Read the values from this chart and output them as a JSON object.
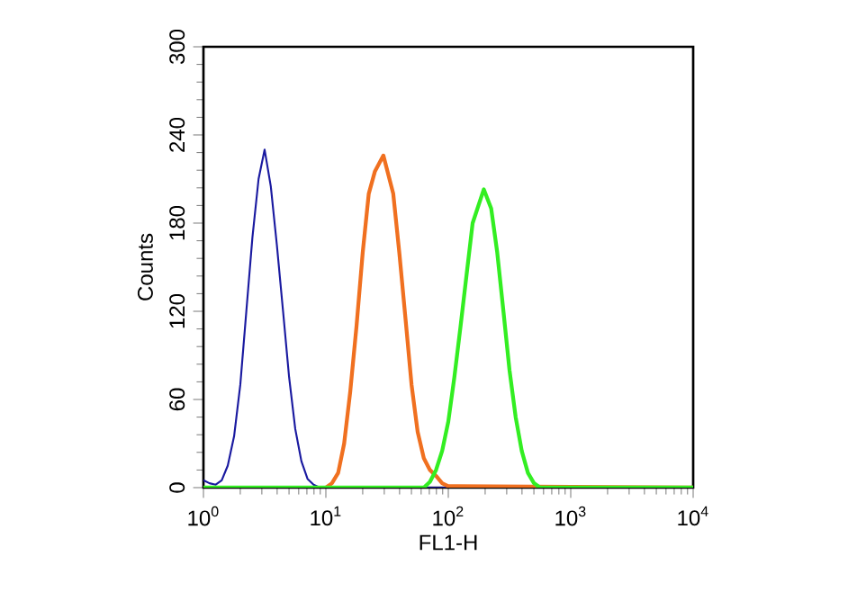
{
  "chart_data": {
    "type": "line",
    "xlabel": "FL1-H",
    "ylabel": "Counts",
    "log": "x",
    "xlim": [
      1,
      10000
    ],
    "ylim": [
      0,
      300
    ],
    "xticks": [
      {
        "value": 1,
        "label": "10$^{0}$"
      },
      {
        "value": 10,
        "label": "10$^{1}$"
      },
      {
        "value": 100,
        "label": "10$^{2}$"
      },
      {
        "value": 1000,
        "label": "10$^{3}$"
      },
      {
        "value": 10000,
        "label": "10$^{4}$"
      }
    ],
    "yticks": [
      0,
      60,
      120,
      180,
      240,
      300
    ],
    "grid": false,
    "marker": "none",
    "line_style": "solid",
    "series": [
      {
        "color": "#1a1aa0",
        "x": [
          1,
          1.12,
          1.26,
          1.41,
          1.58,
          1.78,
          2,
          2.24,
          2.51,
          2.82,
          3.16,
          3.55,
          3.98,
          4.47,
          5.01,
          5.62,
          6.31,
          7.08,
          7.94,
          8.91,
          10,
          10000
        ],
        "values": [
          5,
          3,
          2,
          5,
          15,
          35,
          70,
          120,
          170,
          210,
          230,
          205,
          165,
          120,
          75,
          40,
          18,
          6,
          2,
          0,
          0,
          0
        ]
      },
      {
        "color": "#f07020",
        "x": [
          10,
          11.2,
          12.6,
          14.1,
          15.8,
          17.8,
          20,
          22.4,
          25.1,
          29.5,
          35.5,
          39.8,
          44.7,
          50.1,
          56.2,
          63.1,
          70.8,
          79.4,
          89.1,
          100,
          10000
        ],
        "values": [
          0,
          3,
          10,
          30,
          65,
          110,
          160,
          200,
          215,
          226,
          200,
          160,
          115,
          70,
          38,
          20,
          12,
          8,
          3,
          1,
          0
        ]
      },
      {
        "color": "#33ee22",
        "x": [
          1,
          63.1,
          70.8,
          79.4,
          89.1,
          100,
          112,
          126,
          141,
          158,
          195,
          224,
          251,
          282,
          316,
          355,
          398,
          447,
          501,
          562,
          10000
        ],
        "values": [
          0,
          0,
          4,
          12,
          25,
          45,
          75,
          110,
          145,
          180,
          203,
          190,
          160,
          120,
          80,
          48,
          25,
          10,
          3,
          0,
          0
        ]
      }
    ]
  }
}
